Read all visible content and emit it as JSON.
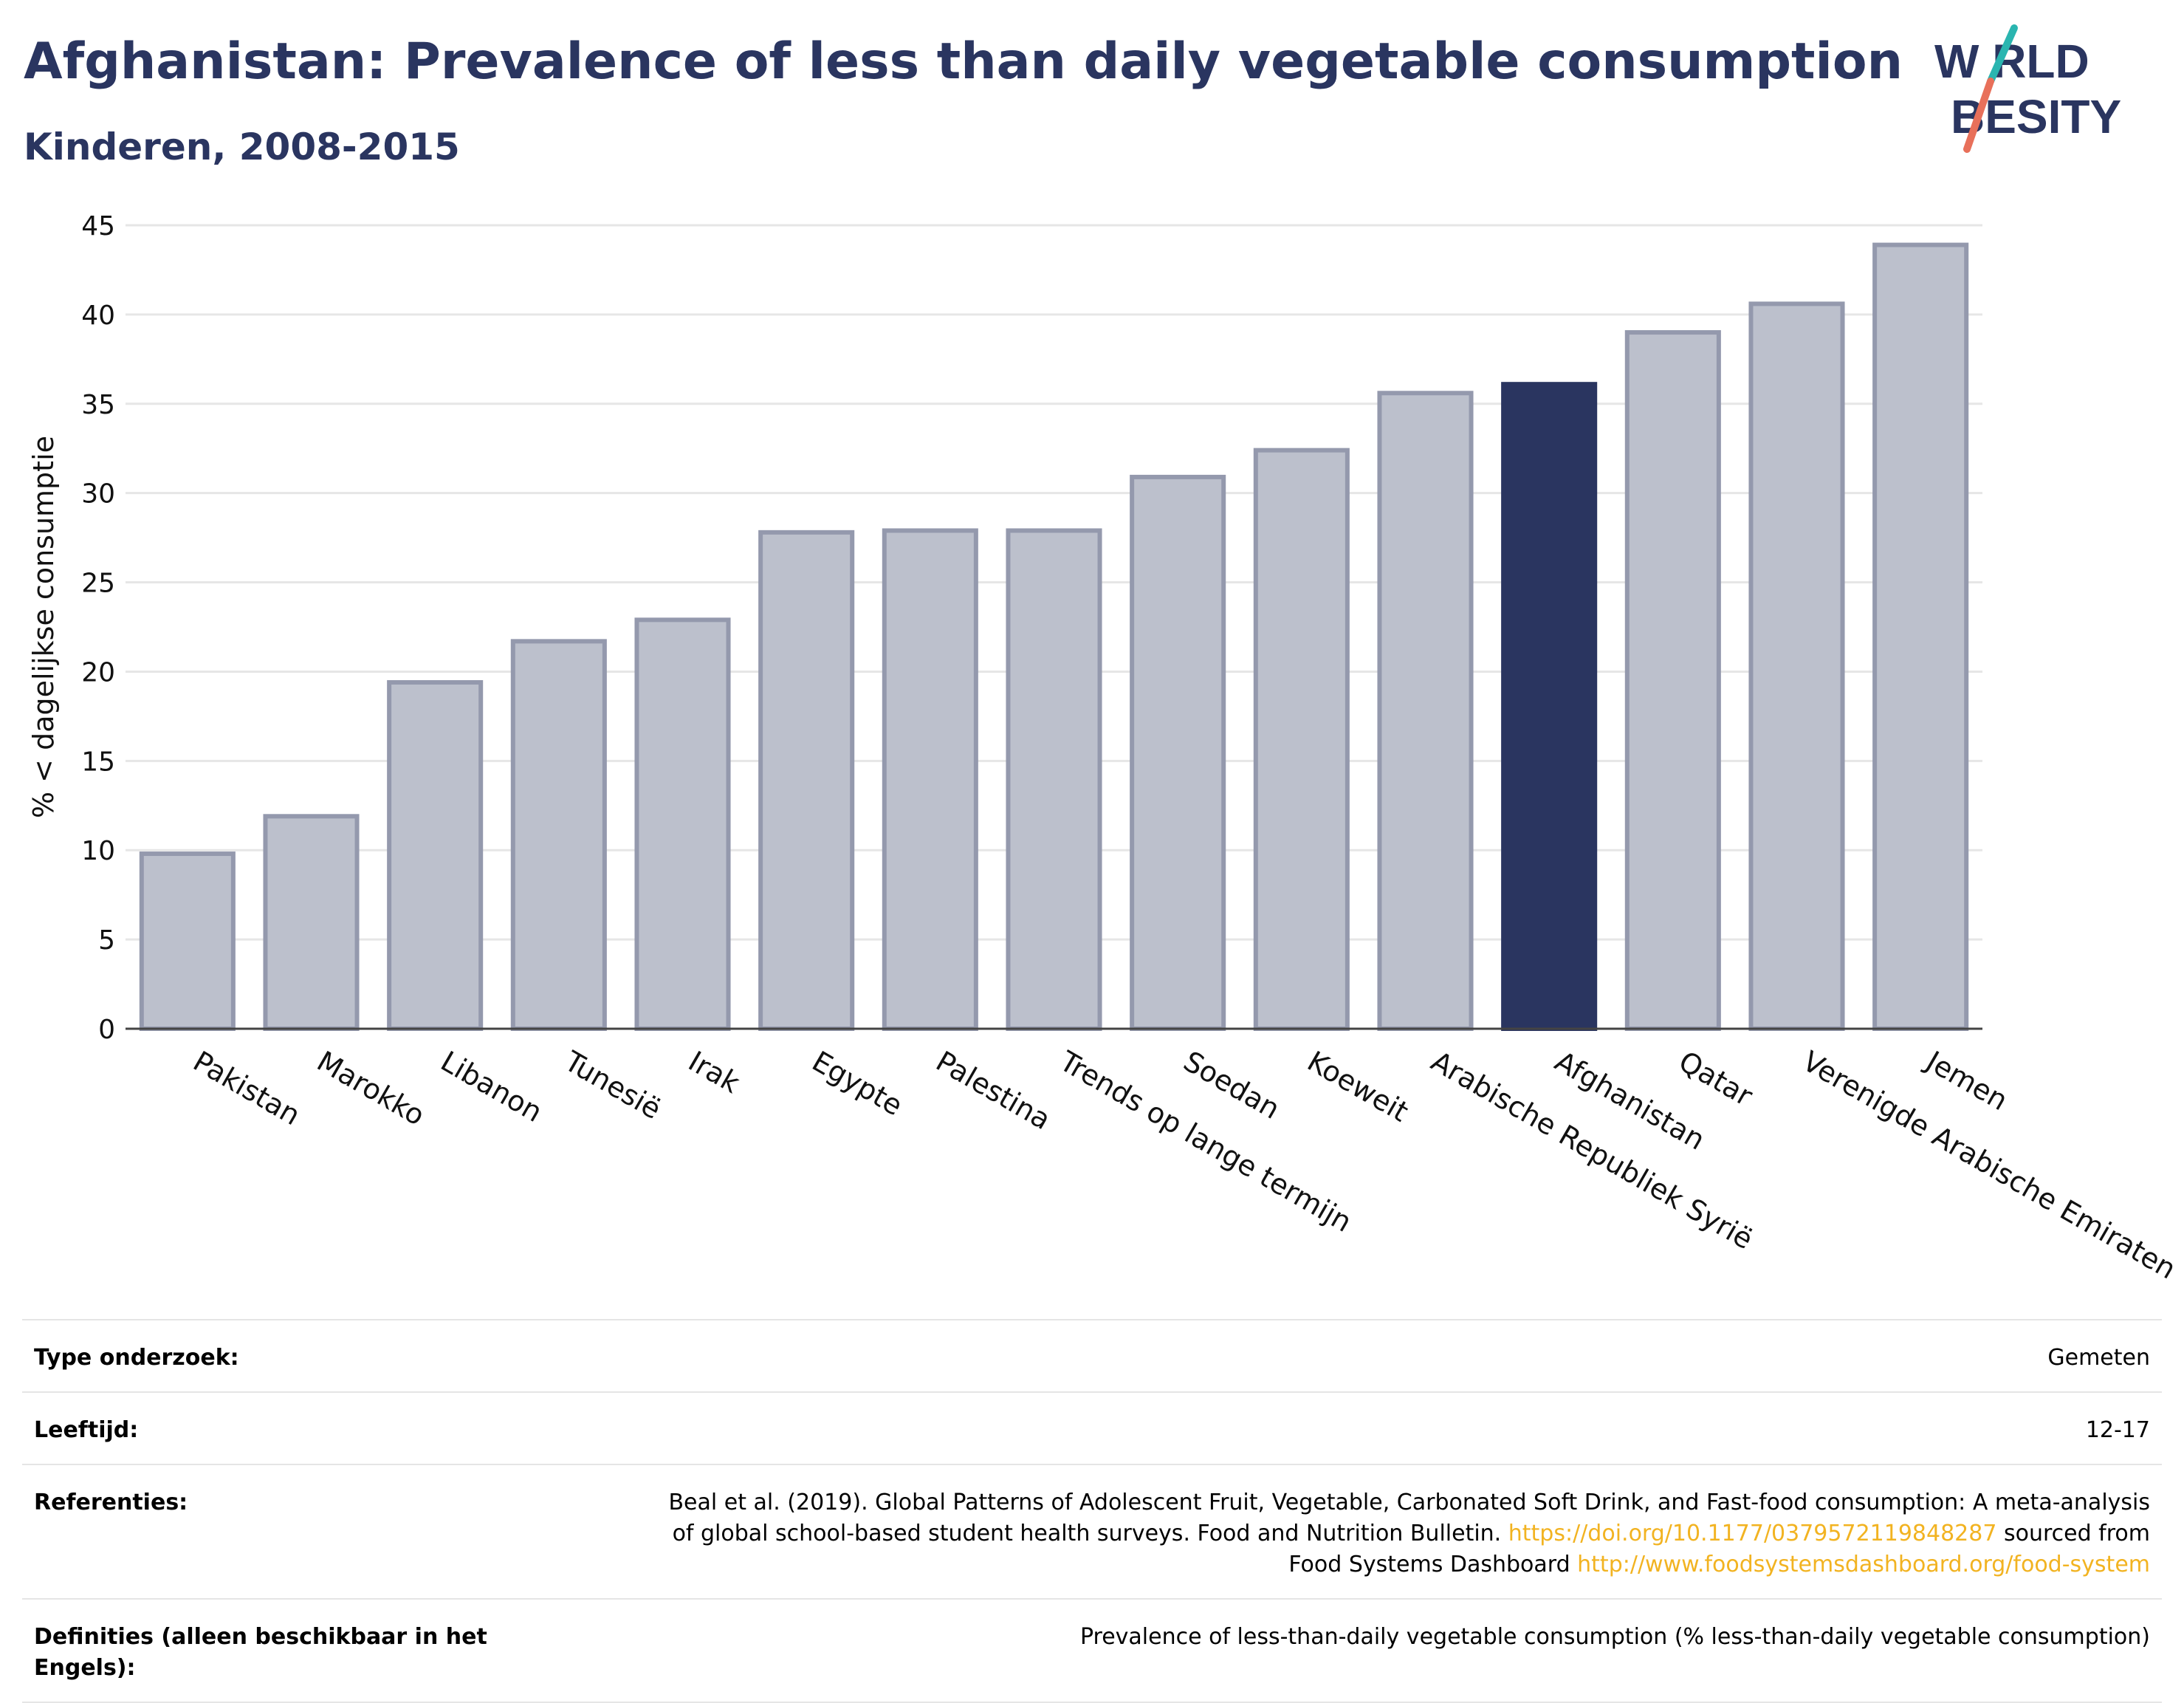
{
  "title": "Afghanistan: Prevalence of less than daily vegetable consumption",
  "subtitle": "Kinderen, 2008-2015",
  "logo": {
    "line1": "W RLD",
    "line2": "BESITY",
    "accent_colors": [
      "#2ab5b0",
      "#e8705a"
    ],
    "color": "#2a3560"
  },
  "colors": {
    "highlight": "#2a3560",
    "bar_fill": "#bcc0cc",
    "bar_stroke": "#9499ad",
    "grid": "#e6e6e6"
  },
  "chart_data": {
    "type": "bar",
    "title": "Afghanistan: Prevalence of less than daily vegetable consumption",
    "subtitle": "Kinderen, 2008-2015",
    "xlabel": "",
    "ylabel": "% < dagelijkse consumptie",
    "ylim": [
      0,
      45
    ],
    "yticks": [
      0,
      5,
      10,
      15,
      20,
      25,
      30,
      35,
      40,
      45
    ],
    "grid": true,
    "highlight": "Afghanistan",
    "categories": [
      "Pakistan",
      "Marokko",
      "Libanon",
      "Tunesië",
      "Irak",
      "Egypte",
      "Palestina",
      "Trends op lange termijn",
      "Soedan",
      "Koeweit",
      "Arabische Republiek Syrië",
      "Afghanistan",
      "Qatar",
      "Verenigde Arabische Emiraten",
      "Jemen"
    ],
    "values": [
      9.8,
      11.9,
      19.4,
      21.7,
      22.9,
      27.8,
      27.9,
      27.9,
      30.9,
      32.4,
      35.6,
      36.1,
      39.0,
      40.6,
      43.9
    ]
  },
  "info": {
    "type_label": "Type onderzoek:",
    "type_value": "Gemeten",
    "age_label": "Leeftijd:",
    "age_value": "12-17",
    "ref_label": "Referenties:",
    "ref_text1": "Beal et al. (2019). Global Patterns of Adolescent Fruit, Vegetable, Carbonated Soft Drink, and Fast-food consumption: A meta-analysis",
    "ref_text2": "of global school-based student health surveys. Food and Nutrition Bulletin. ",
    "ref_link1": "https://doi.org/10.1177/0379572119848287",
    "ref_text3": " sourced from",
    "ref_text4": "Food Systems Dashboard ",
    "ref_link2": "http://www.foodsystemsdashboard.org/food-system",
    "def_label": "Definities (alleen beschikbaar in het Engels):",
    "def_value": "Prevalence of less-than-daily vegetable consumption (% less-than-daily vegetable consumption)"
  }
}
